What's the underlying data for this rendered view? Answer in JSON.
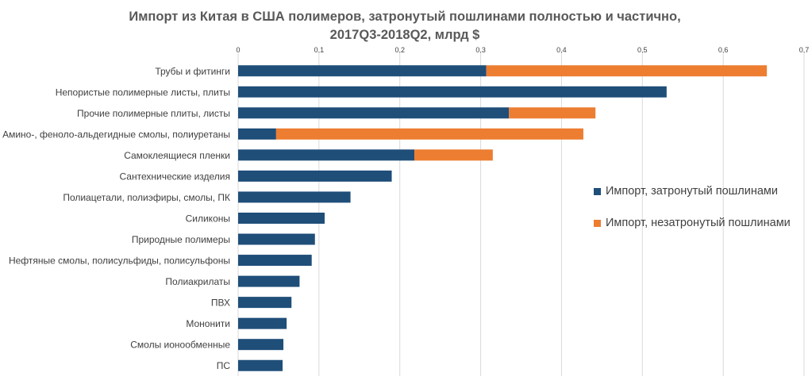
{
  "chart_data": {
    "type": "bar",
    "orientation": "horizontal",
    "stacked": true,
    "title_line1": "Импорт из Китая в США полимеров, затронутый пошлинами полностью и частично,",
    "title_line2": "2017Q3-2018Q2, млрд $",
    "xlim": [
      0,
      0.7
    ],
    "ticks": [
      "0",
      "0,1",
      "0,2",
      "0,3",
      "0,4",
      "0,5",
      "0,6",
      "0,7"
    ],
    "tick_values": [
      0,
      0.1,
      0.2,
      0.3,
      0.4,
      0.5,
      0.6,
      0.7
    ],
    "x_axis_position": "top",
    "grid": true,
    "categories": [
      "Трубы и фитинги",
      "Непористые полимерные листы, плиты",
      "Прочие полимерные плиты, листы",
      "Амино-, феноло-альдегидные смолы, полиуретаны",
      "Самоклеящиеся пленки",
      "Сантехнические изделия",
      "Полиацетали, полиэфиры, смолы, ПК",
      "Силиконы",
      "Природные полимеры",
      "Нефтяные смолы, полисульфиды, полисульфоны",
      "Полиакрилаты",
      "ПВХ",
      "Мононити",
      "Смолы ионообменные",
      "ПС"
    ],
    "series": [
      {
        "name": "Импорт, затронутый пошлинами",
        "color": "#1f4e79",
        "values": [
          0.307,
          0.53,
          0.335,
          0.047,
          0.218,
          0.19,
          0.139,
          0.107,
          0.095,
          0.091,
          0.076,
          0.066,
          0.06,
          0.056,
          0.055
        ]
      },
      {
        "name": "Импорт, незатронутый пошлинами",
        "color": "#ed7d31",
        "values": [
          0.347,
          0,
          0.107,
          0.38,
          0.097,
          0,
          0,
          0,
          0,
          0,
          0,
          0,
          0,
          0,
          0
        ]
      }
    ],
    "legend_position": "right"
  },
  "colors": {
    "title": "#595959",
    "label": "#404040",
    "grid": "#d9d9d9"
  }
}
